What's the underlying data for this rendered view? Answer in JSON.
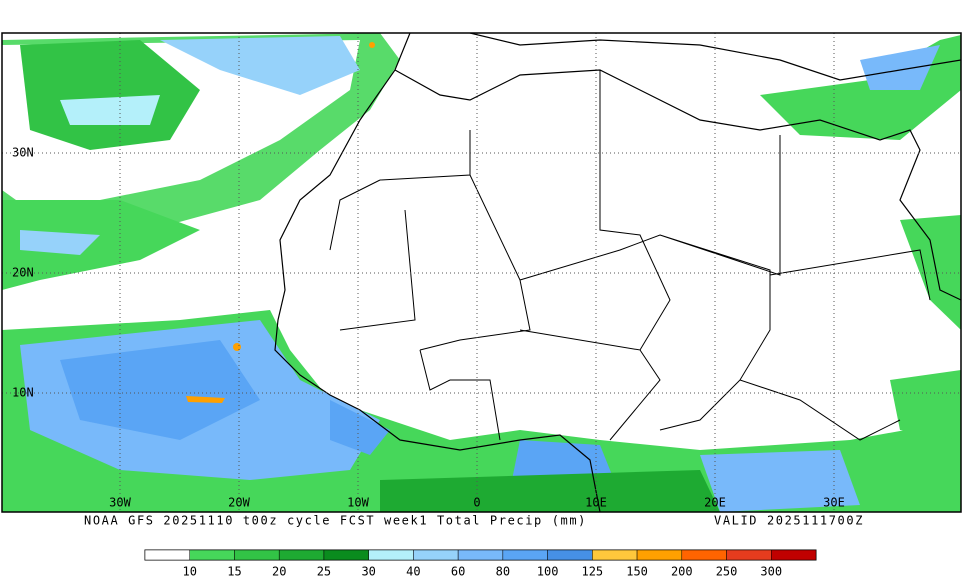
{
  "map": {
    "lat_labels": [
      "30N",
      "20N",
      "10N"
    ],
    "lon_labels": [
      "30W",
      "20W",
      "10W",
      "0",
      "10E",
      "20E",
      "30E"
    ],
    "caption": "NOAA GFS 20251110 t00z cycle FCST week1 Total Precip (mm)",
    "valid": "VALID 2025111700Z"
  },
  "legend": {
    "labels": [
      10,
      15,
      20,
      25,
      30,
      40,
      60,
      80,
      100,
      125,
      150,
      200,
      250,
      300
    ],
    "colors": [
      "#ffffff",
      "#46d75a",
      "#32c346",
      "#1eaa32",
      "#0a8c1e",
      "#b4f0fa",
      "#96d2fa",
      "#78b9fa",
      "#5aa5f5",
      "#4690e6",
      "#ffc83c",
      "#ffa000",
      "#ff6400",
      "#e63c1e",
      "#c00000"
    ]
  }
}
